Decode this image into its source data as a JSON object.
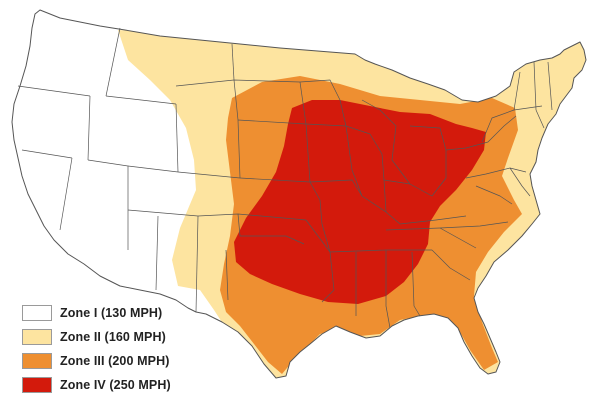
{
  "colors": {
    "zone_1": "#ffffff",
    "zone_2": "#fde4a0",
    "zone_3": "#ee8f31",
    "zone_4": "#d31a0c",
    "boundary": "#555555"
  },
  "legend": {
    "items": [
      {
        "label": "Zone I (130 MPH)",
        "color_key": "zone_1"
      },
      {
        "label": "Zone II (160 MPH)",
        "color_key": "zone_2"
      },
      {
        "label": "Zone III (200 MPH)",
        "color_key": "zone_3"
      },
      {
        "label": "Zone IV (250 MPH)",
        "color_key": "zone_4"
      }
    ]
  }
}
